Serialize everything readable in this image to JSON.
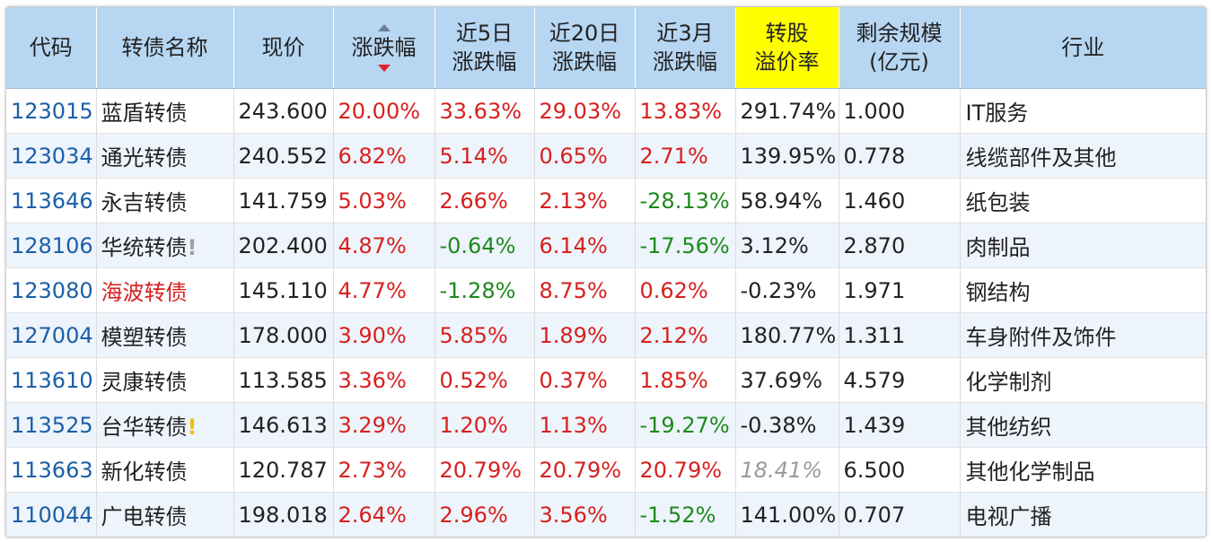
{
  "headers": {
    "code": "代码",
    "name": "转债名称",
    "price": "现价",
    "change": "涨跌幅",
    "d5_line1": "近5日",
    "d5_line2": "涨跌幅",
    "d20_line1": "近20日",
    "d20_line2": "涨跌幅",
    "m3_line1": "近3月",
    "m3_line2": "涨跌幅",
    "premium_line1": "转股",
    "premium_line2": "溢价率",
    "scale_line1": "剩余规模",
    "scale_line2": "(亿元)",
    "industry": "行业"
  },
  "sort": {
    "column": "change",
    "direction": "desc"
  },
  "colors": {
    "header_bg": "#b7d6f2",
    "highlight": "#ffff00",
    "up": "#d6201f",
    "down": "#1c8a1c",
    "code": "#1a5fa8"
  },
  "rows": [
    {
      "code": "123015",
      "name": "蓝盾转债",
      "mark": "",
      "price": "243.600",
      "change": "20.00%",
      "d5": "33.63%",
      "d20": "29.03%",
      "m3": "13.83%",
      "premium": "291.74%",
      "scale": "1.000",
      "industry": "IT服务"
    },
    {
      "code": "123034",
      "name": "通光转债",
      "mark": "",
      "price": "240.552",
      "change": "6.82%",
      "d5": "5.14%",
      "d20": "0.65%",
      "m3": "2.71%",
      "premium": "139.95%",
      "scale": "0.778",
      "industry": "线缆部件及其他"
    },
    {
      "code": "113646",
      "name": "永吉转债",
      "mark": "",
      "price": "141.759",
      "change": "5.03%",
      "d5": "2.66%",
      "d20": "2.13%",
      "m3": "-28.13%",
      "premium": "58.94%",
      "scale": "1.460",
      "industry": "纸包装"
    },
    {
      "code": "128106",
      "name": "华统转债",
      "mark": "!",
      "price": "202.400",
      "change": "4.87%",
      "d5": "-0.64%",
      "d20": "6.14%",
      "m3": "-17.56%",
      "premium": "3.12%",
      "scale": "2.870",
      "industry": "肉制品"
    },
    {
      "code": "123080",
      "name": "海波转债",
      "mark": "",
      "price": "145.110",
      "change": "4.77%",
      "d5": "-1.28%",
      "d20": "8.75%",
      "m3": "0.62%",
      "premium": "-0.23%",
      "scale": "1.971",
      "industry": "钢结构"
    },
    {
      "code": "127004",
      "name": "模塑转债",
      "mark": "",
      "price": "178.000",
      "change": "3.90%",
      "d5": "5.85%",
      "d20": "1.89%",
      "m3": "2.12%",
      "premium": "180.77%",
      "scale": "1.311",
      "industry": "车身附件及饰件"
    },
    {
      "code": "113610",
      "name": "灵康转债",
      "mark": "",
      "price": "113.585",
      "change": "3.36%",
      "d5": "0.52%",
      "d20": "0.37%",
      "m3": "1.85%",
      "premium": "37.69%",
      "scale": "4.579",
      "industry": "化学制剂"
    },
    {
      "code": "113525",
      "name": "台华转债",
      "mark": "!",
      "price": "146.613",
      "change": "3.29%",
      "d5": "1.20%",
      "d20": "1.13%",
      "m3": "-19.27%",
      "premium": "-0.38%",
      "scale": "1.439",
      "industry": "其他纺织"
    },
    {
      "code": "113663",
      "name": "新化转债",
      "mark": "",
      "price": "120.787",
      "change": "2.73%",
      "d5": "20.79%",
      "d20": "20.79%",
      "m3": "20.79%",
      "premium": "18.41%",
      "scale": "6.500",
      "industry": "其他化学制品"
    },
    {
      "code": "110044",
      "name": "广电转债",
      "mark": "",
      "price": "198.018",
      "change": "2.64%",
      "d5": "2.96%",
      "d20": "3.56%",
      "m3": "-1.52%",
      "premium": "141.00%",
      "scale": "0.707",
      "industry": "电视广播"
    }
  ]
}
